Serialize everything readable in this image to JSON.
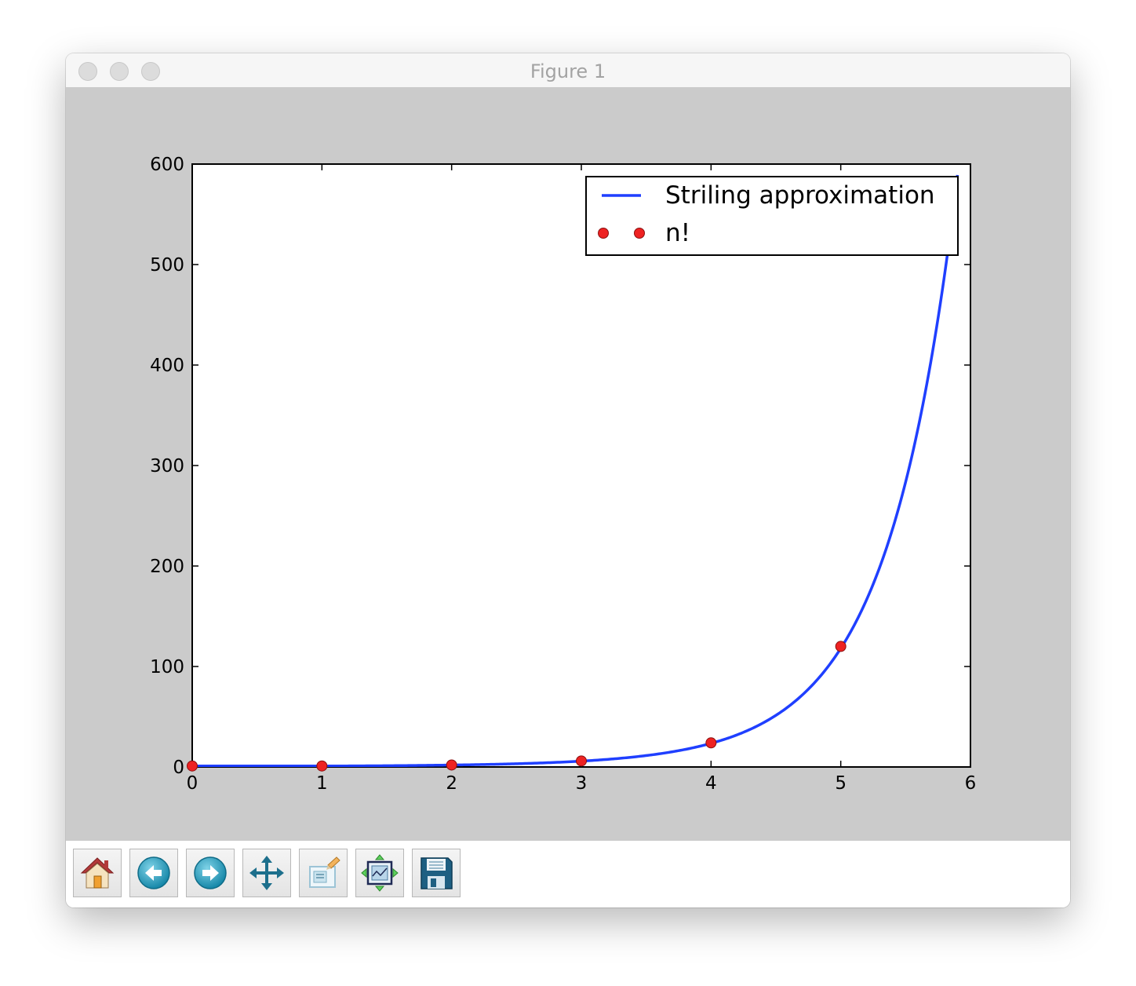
{
  "window": {
    "title": "Figure 1"
  },
  "toolbar": {
    "buttons": [
      {
        "name": "home-button",
        "icon": "home-icon"
      },
      {
        "name": "back-button",
        "icon": "arrow-left-icon"
      },
      {
        "name": "forward-button",
        "icon": "arrow-right-icon"
      },
      {
        "name": "pan-button",
        "icon": "move-arrows-icon"
      },
      {
        "name": "zoom-button",
        "icon": "zoom-rect-icon"
      },
      {
        "name": "subplots-button",
        "icon": "subplots-icon"
      },
      {
        "name": "save-button",
        "icon": "floppy-disk-icon"
      }
    ]
  },
  "chart_data": {
    "type": "line",
    "title": "",
    "xlabel": "",
    "ylabel": "",
    "xlim": [
      0,
      6
    ],
    "ylim": [
      0,
      600
    ],
    "xticks": [
      0,
      1,
      2,
      3,
      4,
      5,
      6
    ],
    "yticks": [
      0,
      100,
      200,
      300,
      400,
      500,
      600
    ],
    "grid": false,
    "legend_position": "top-right",
    "series": [
      {
        "name": "Striling approximation",
        "kind": "line",
        "color": "#1f3fff",
        "x_range": [
          0,
          5.9
        ],
        "function": "stirling"
      },
      {
        "name": "n!",
        "kind": "scatter",
        "color": "#ee2222",
        "x": [
          0,
          1,
          2,
          3,
          4,
          5
        ],
        "y": [
          1,
          1,
          2,
          6,
          24,
          120
        ]
      }
    ]
  }
}
